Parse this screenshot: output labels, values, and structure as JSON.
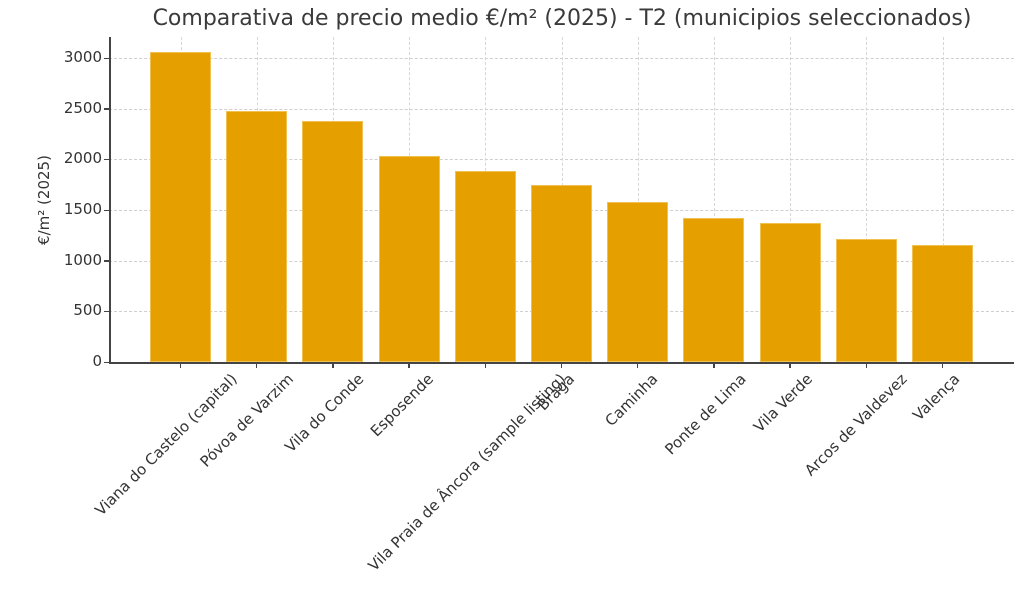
{
  "chart_data": {
    "type": "bar",
    "title": "Comparativa de precio medio €/m² (2025) - T2 (municipios seleccionados)",
    "xlabel": "",
    "ylabel": "€/m² (2025)",
    "ylim": [
      0,
      3210
    ],
    "yticks": [
      "0",
      "500",
      "1000",
      "1500",
      "2000",
      "2500",
      "3000"
    ],
    "grid": true,
    "legend": null,
    "bar_color": "#E5A000",
    "categories": [
      "Viana do Castelo (capital)",
      "Póvoa de Varzim",
      "Vila do Conde",
      "Esposende",
      "Vila Praia de Âncora (sample listing)",
      "Braga",
      "Caminha",
      "Ponte de Lima",
      "Vila Verde",
      "Arcos de Valdevez",
      "Valença"
    ],
    "values": [
      3060,
      2480,
      2380,
      2030,
      1880,
      1750,
      1580,
      1420,
      1375,
      1215,
      1150
    ]
  }
}
